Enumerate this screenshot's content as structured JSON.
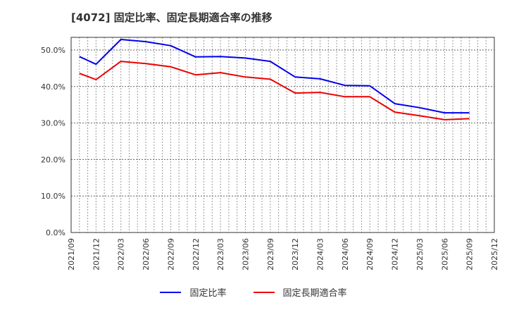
{
  "title": "[4072]  固定比率、固定長期適合率の推移",
  "legend": [
    {
      "label": "固定比率",
      "color": "#0000ee"
    },
    {
      "label": "固定長期適合率",
      "color": "#ee0000"
    }
  ],
  "chart_data": {
    "type": "line",
    "title": "[4072]  固定比率、固定長期適合率の推移",
    "xlabel": "",
    "ylabel": "",
    "ylim": [
      0,
      53.5
    ],
    "yticks": [
      "0.0%",
      "10.0%",
      "20.0%",
      "30.0%",
      "40.0%",
      "50.0%"
    ],
    "xticks": [
      "2021/09",
      "2021/12",
      "2022/03",
      "2022/06",
      "2022/09",
      "2022/12",
      "2023/03",
      "2023/06",
      "2023/09",
      "2023/12",
      "2024/03",
      "2024/06",
      "2024/09",
      "2024/12",
      "2025/03",
      "2025/06",
      "2025/09",
      "2025/12"
    ],
    "grid": true,
    "legend_position": "bottom",
    "x": [
      "2021/10",
      "2021/12",
      "2022/03",
      "2022/06",
      "2022/09",
      "2022/12",
      "2023/03",
      "2023/06",
      "2023/09",
      "2023/12",
      "2024/03",
      "2024/06",
      "2024/09",
      "2024/12",
      "2025/03",
      "2025/06",
      "2025/09"
    ],
    "series": [
      {
        "name": "固定比率",
        "color": "#0000ee",
        "values": [
          48.2,
          46.1,
          52.9,
          52.3,
          51.2,
          48.1,
          48.2,
          47.8,
          46.9,
          42.6,
          42.1,
          40.3,
          40.2,
          35.3,
          34.2,
          32.8,
          32.8
        ]
      },
      {
        "name": "固定長期適合率",
        "color": "#ee0000",
        "values": [
          43.6,
          41.9,
          46.9,
          46.3,
          45.4,
          43.2,
          43.8,
          42.6,
          42.0,
          38.2,
          38.4,
          37.2,
          37.2,
          33.0,
          32.0,
          30.9,
          31.2
        ]
      }
    ]
  }
}
